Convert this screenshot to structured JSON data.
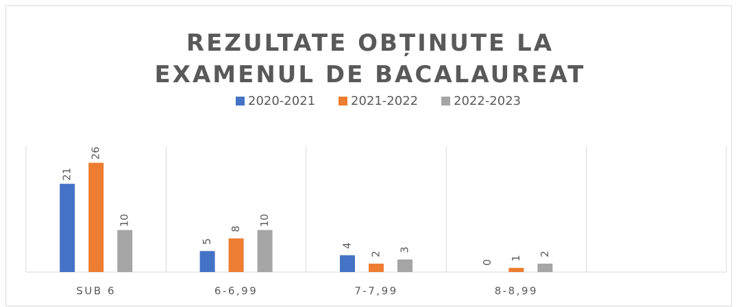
{
  "chart_data": {
    "type": "bar",
    "title": "REZULTATE OBȚINUTE LA EXAMENUL DE BACALAUREAT",
    "categories": [
      "SUB 6",
      "6-6,99",
      "7-7,99",
      "8-8,99",
      null
    ],
    "series": [
      {
        "name": "2020-2021",
        "color": "#4472c4",
        "values": [
          21,
          5,
          4,
          0,
          null
        ]
      },
      {
        "name": "2021-2022",
        "color": "#ed7d31",
        "values": [
          26,
          8,
          2,
          1,
          null
        ]
      },
      {
        "name": "2022-2023",
        "color": "#a5a5a5",
        "values": [
          10,
          10,
          3,
          2,
          null
        ]
      }
    ],
    "ylim": [
      0,
      30
    ],
    "legend": "top"
  }
}
